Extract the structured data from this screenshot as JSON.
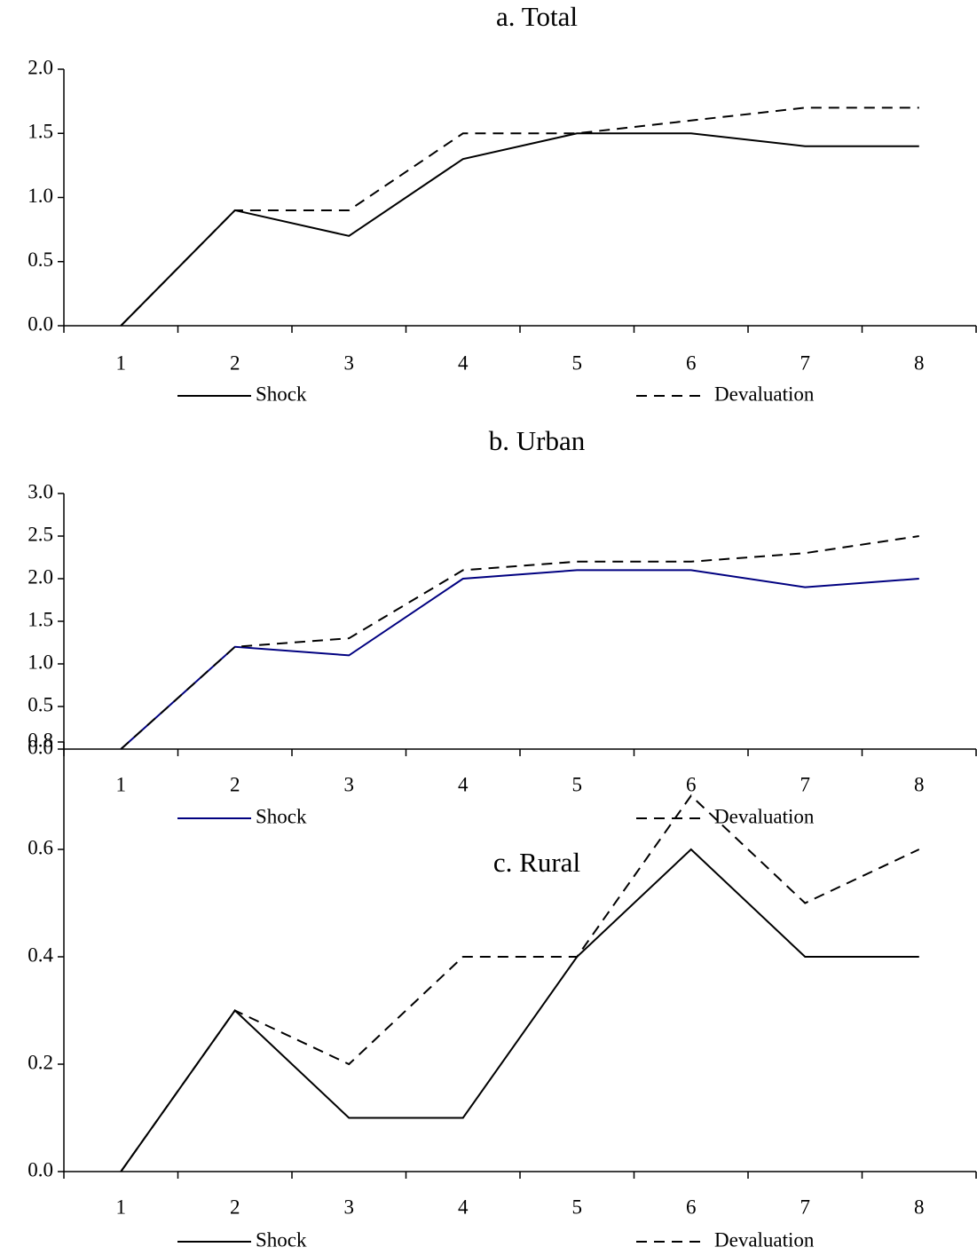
{
  "chart_data": [
    {
      "type": "line",
      "title": "a. Total",
      "categories": [
        "1",
        "2",
        "3",
        "4",
        "5",
        "6",
        "7",
        "8"
      ],
      "series": [
        {
          "name": "Shock",
          "color": "#000000",
          "linestyle": "solid",
          "values": [
            0,
            0.9,
            0.7,
            1.3,
            1.5,
            1.5,
            1.4,
            1.4
          ]
        },
        {
          "name": "Devaluation",
          "color": "#000000",
          "linestyle": "dashed",
          "values": [
            0,
            0.9,
            0.9,
            1.5,
            1.5,
            1.6,
            1.7,
            1.7
          ]
        }
      ],
      "ylim": [
        0,
        2
      ],
      "yticks": [
        {
          "value": 0,
          "label": "0.0"
        },
        {
          "value": 0.5,
          "label": "0.5"
        },
        {
          "value": 1,
          "label": "1.0"
        },
        {
          "value": 1.5,
          "label": "1.5"
        },
        {
          "value": 2,
          "label": "2.0"
        }
      ]
    },
    {
      "type": "line",
      "title": "b. Urban",
      "categories": [
        "1",
        "2",
        "3",
        "4",
        "5",
        "6",
        "7",
        "8"
      ],
      "series": [
        {
          "name": "Shock",
          "color": "#000080",
          "linestyle": "solid",
          "values": [
            0,
            1.2,
            1.1,
            2.0,
            2.1,
            2.1,
            1.9,
            2.0
          ]
        },
        {
          "name": "Devaluation",
          "color": "#000000",
          "linestyle": "dashed",
          "values": [
            0,
            1.2,
            1.3,
            2.1,
            2.2,
            2.2,
            2.3,
            2.5
          ]
        }
      ],
      "ylim": [
        0,
        3
      ],
      "yticks": [
        {
          "value": 0,
          "label": "0.0"
        },
        {
          "value": 0.5,
          "label": "0.5"
        },
        {
          "value": 1,
          "label": "1.0"
        },
        {
          "value": 1.5,
          "label": "1.5"
        },
        {
          "value": 2,
          "label": "2.0"
        },
        {
          "value": 2.5,
          "label": "2.5"
        },
        {
          "value": 3,
          "label": "3.0"
        }
      ]
    },
    {
      "type": "line",
      "title": "c. Rural",
      "categories": [
        "1",
        "2",
        "3",
        "4",
        "5",
        "6",
        "7",
        "8"
      ],
      "series": [
        {
          "name": "Shock",
          "color": "#000000",
          "linestyle": "solid",
          "values": [
            0,
            0.3,
            0.1,
            0.1,
            0.4,
            0.6,
            0.4,
            0.4
          ]
        },
        {
          "name": "Devaluation",
          "color": "#000000",
          "linestyle": "dashed",
          "values": [
            0,
            0.3,
            0.2,
            0.4,
            0.4,
            0.7,
            0.5,
            0.6
          ]
        }
      ],
      "ylim": [
        0,
        0.8
      ],
      "yticks": [
        {
          "value": 0,
          "label": "0.0"
        },
        {
          "value": 0.2,
          "label": "0.2"
        },
        {
          "value": 0.4,
          "label": "0.4"
        },
        {
          "value": 0.6,
          "label": "0.6"
        },
        {
          "value": 0.8,
          "label": "0.8"
        }
      ]
    }
  ]
}
